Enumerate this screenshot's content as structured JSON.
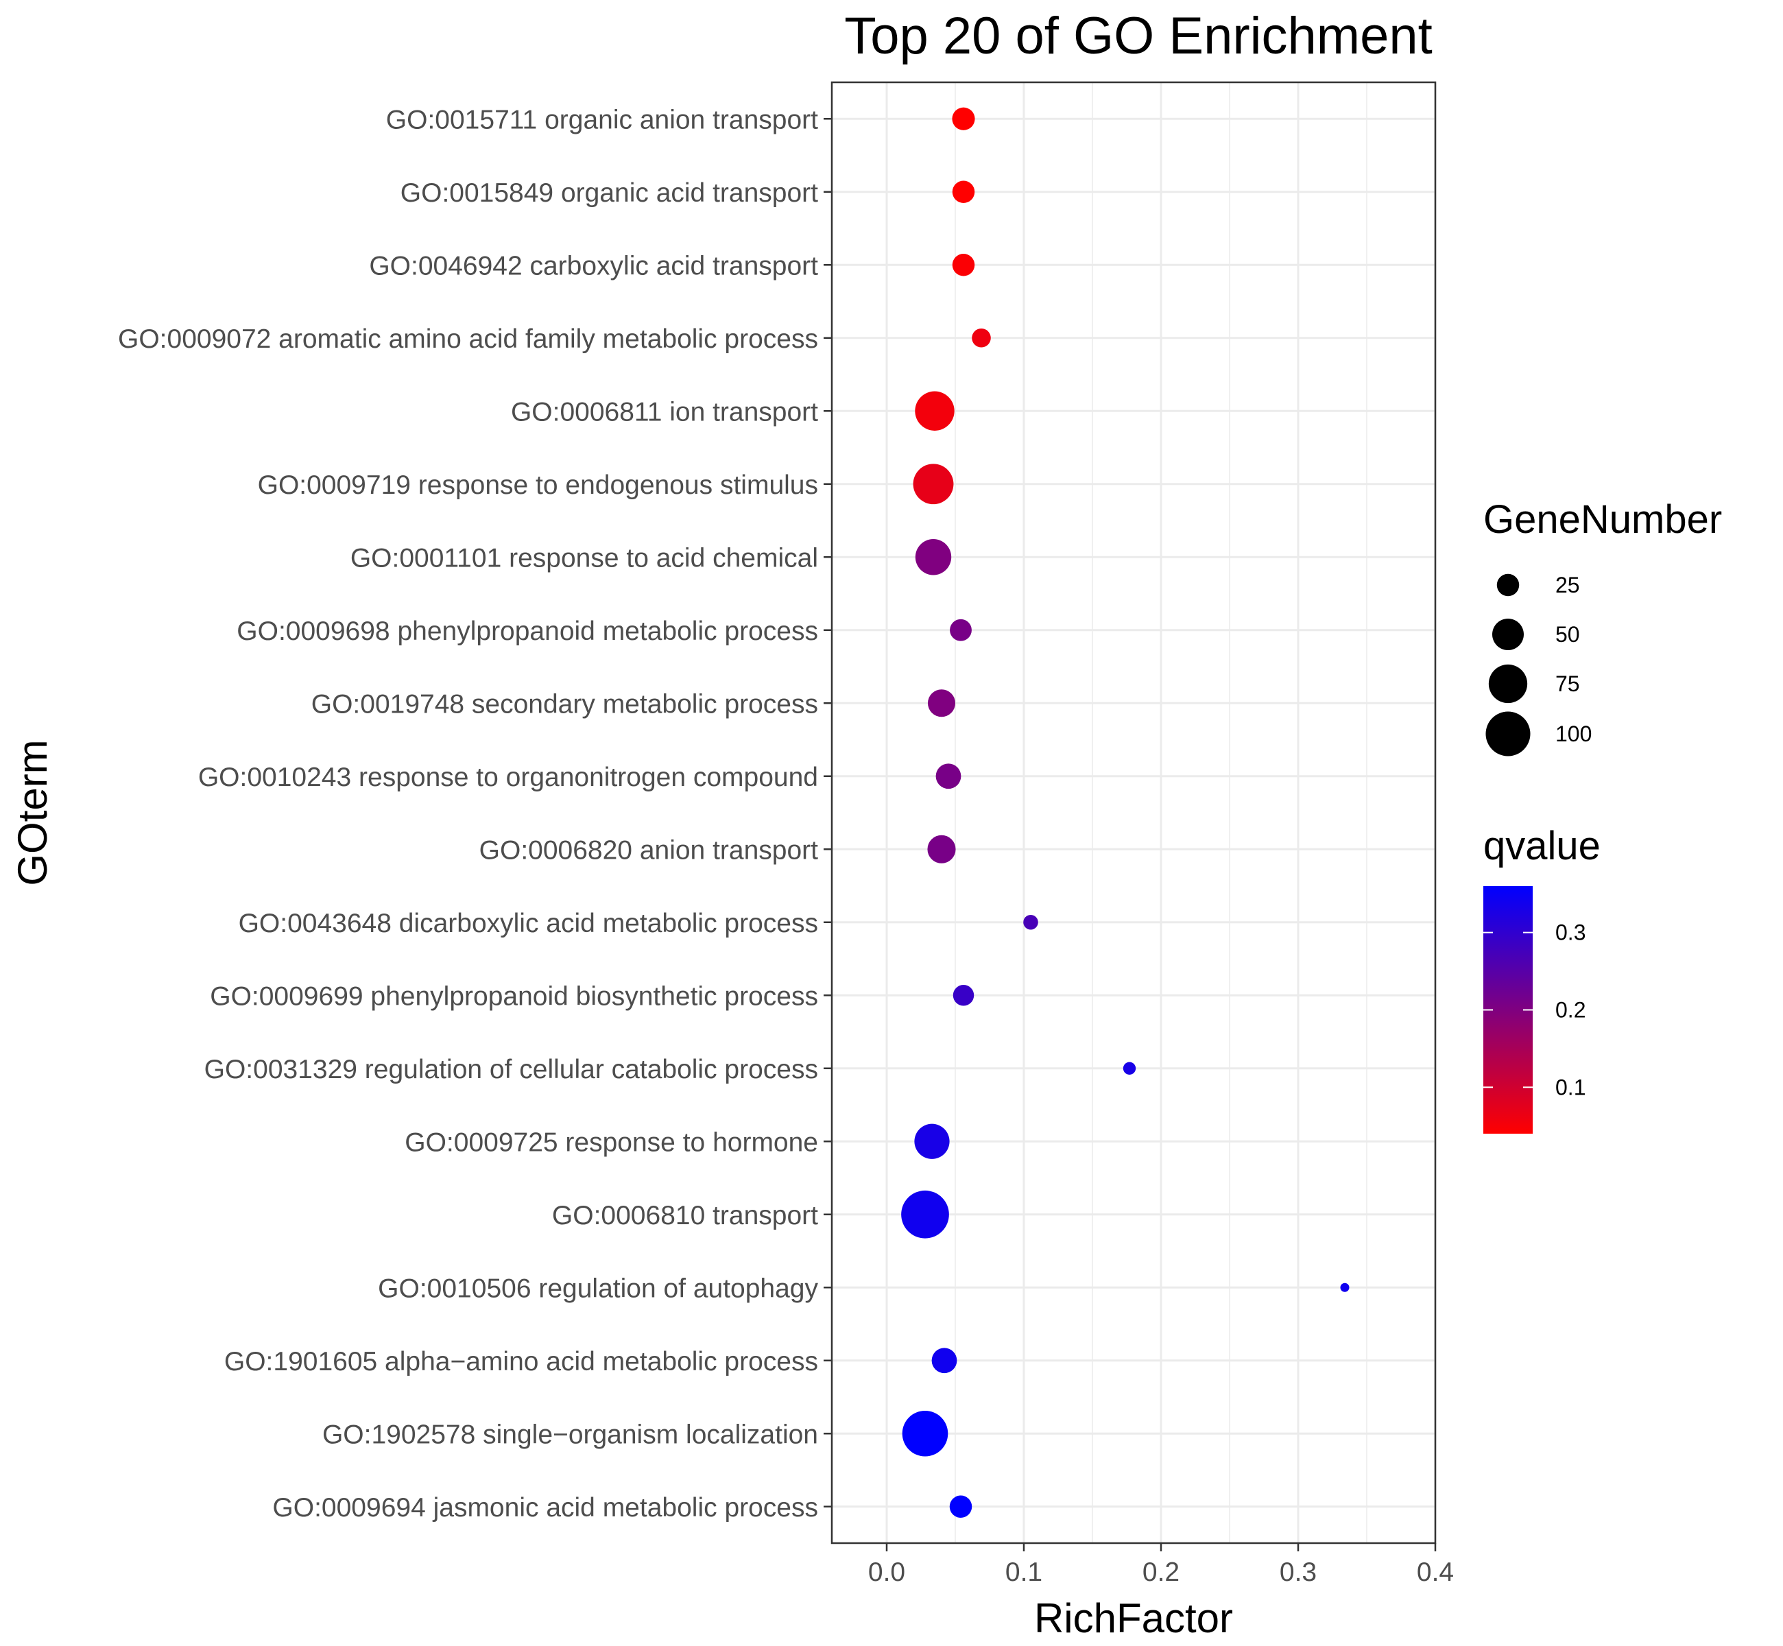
{
  "chart_data": {
    "type": "scatter",
    "title": "Top 20 of GO Enrichment",
    "xlabel": "RichFactor",
    "ylabel": "GOterm",
    "xlim": [
      -0.04,
      0.4
    ],
    "xticks": [
      0.0,
      0.1,
      0.2,
      0.3,
      0.4
    ],
    "xtick_labels": [
      "0.0",
      "0.1",
      "0.2",
      "0.3",
      "0.4"
    ],
    "grid": true,
    "legend_position": "right",
    "points": [
      {
        "term": "GO:0015711 organic anion transport",
        "x": 0.056,
        "size": 26,
        "q": 0.04
      },
      {
        "term": "GO:0015849 organic acid transport",
        "x": 0.056,
        "size": 25,
        "q": 0.04
      },
      {
        "term": "GO:0046942 carboxylic acid transport",
        "x": 0.056,
        "size": 25,
        "q": 0.045
      },
      {
        "term": "GO:0009072 aromatic amino acid family metabolic process",
        "x": 0.069,
        "size": 18,
        "q": 0.06
      },
      {
        "term": "GO:0006811 ion transport",
        "x": 0.035,
        "size": 78,
        "q": 0.055
      },
      {
        "term": "GO:0009719 response to endogenous stimulus",
        "x": 0.034,
        "size": 82,
        "q": 0.07
      },
      {
        "term": "GO:0001101 response to acid chemical",
        "x": 0.034,
        "size": 65,
        "q": 0.2
      },
      {
        "term": "GO:0009698 phenylpropanoid metabolic process",
        "x": 0.054,
        "size": 24,
        "q": 0.21
      },
      {
        "term": "GO:0019748 secondary metabolic process",
        "x": 0.04,
        "size": 38,
        "q": 0.2
      },
      {
        "term": "GO:0010243 response to organonitrogen compound",
        "x": 0.045,
        "size": 32,
        "q": 0.21
      },
      {
        "term": "GO:0006820 anion transport",
        "x": 0.04,
        "size": 40,
        "q": 0.21
      },
      {
        "term": "GO:0043648 dicarboxylic acid metabolic process",
        "x": 0.105,
        "size": 11,
        "q": 0.27
      },
      {
        "term": "GO:0009699 phenylpropanoid biosynthetic process",
        "x": 0.056,
        "size": 22,
        "q": 0.29
      },
      {
        "term": "GO:0031329 regulation of cellular catabolic process",
        "x": 0.177,
        "size": 8,
        "q": 0.33
      },
      {
        "term": "GO:0009725 response to hormone",
        "x": 0.033,
        "size": 62,
        "q": 0.33
      },
      {
        "term": "GO:0006810 transport",
        "x": 0.028,
        "size": 115,
        "q": 0.34
      },
      {
        "term": "GO:0010506 regulation of autophagy",
        "x": 0.334,
        "size": 4,
        "q": 0.34
      },
      {
        "term": "GO:1901605 alpha−amino acid metabolic process",
        "x": 0.042,
        "size": 32,
        "q": 0.34
      },
      {
        "term": "GO:1902578 single−organism localization",
        "x": 0.028,
        "size": 105,
        "q": 0.36
      },
      {
        "term": "GO:0009694 jasmonic acid metabolic process",
        "x": 0.054,
        "size": 25,
        "q": 0.36
      }
    ],
    "size_legend": {
      "title": "GeneNumber",
      "breaks": [
        25,
        50,
        75,
        100
      ],
      "labels": [
        "25",
        "50",
        "75",
        "100"
      ]
    },
    "color_legend": {
      "title": "qvalue",
      "range": [
        0.04,
        0.36
      ],
      "breaks": [
        0.1,
        0.2,
        0.3
      ],
      "labels": [
        "0.1",
        "0.2",
        "0.3"
      ],
      "low_color": "#FF0000",
      "high_color": "#0000FF"
    }
  }
}
